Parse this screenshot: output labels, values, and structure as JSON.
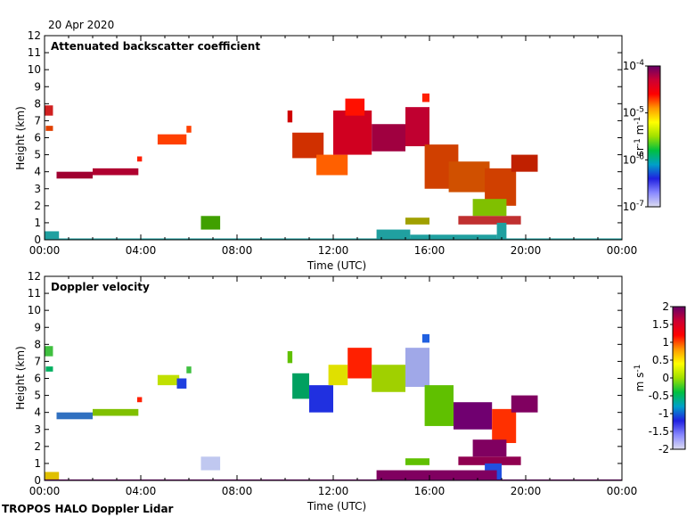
{
  "date": "20 Apr 2020",
  "footer": "TROPOS HALO Doppler Lidar",
  "x_tick_labels": [
    "00:00",
    "04:00",
    "08:00",
    "12:00",
    "16:00",
    "20:00",
    "00:00"
  ],
  "y_tick_labels": [
    "0",
    "1",
    "2",
    "3",
    "4",
    "5",
    "6",
    "7",
    "8",
    "9",
    "10",
    "11",
    "12"
  ],
  "xlabel": "Time (UTC)",
  "ylabel": "Height (km)",
  "chart_data": [
    {
      "type": "heatmap",
      "title": "Attenuated backscatter coefficient",
      "xlabel": "Time (UTC)",
      "ylabel": "Height (km)",
      "xlim": [
        0,
        24
      ],
      "ylim": [
        0,
        12
      ],
      "colorbar": {
        "label_parts": [
          "sr",
          "-1",
          " m",
          "-1"
        ],
        "scale": "log",
        "range": [
          1e-07,
          0.0001
        ],
        "ticks": [
          {
            "base": "10",
            "exp": "-7",
            "v": 0
          },
          {
            "base": "10",
            "exp": "-6",
            "v": 1
          },
          {
            "base": "10",
            "exp": "-5",
            "v": 2
          },
          {
            "base": "10",
            "exp": "-4",
            "v": 3
          }
        ],
        "colormap": [
          "#dcdcf0",
          "#8888ff",
          "#2020e0",
          "#00a0c8",
          "#00c040",
          "#a0e000",
          "#ffff00",
          "#ff9900",
          "#ff0000",
          "#cc0033",
          "#660066"
        ]
      },
      "features": [
        {
          "t0": 0.0,
          "t1": 0.35,
          "h0": 7.3,
          "h1": 7.9,
          "c": "#d02020"
        },
        {
          "t0": 0.05,
          "t1": 0.35,
          "h0": 6.4,
          "h1": 6.7,
          "c": "#e04000"
        },
        {
          "t0": 0.5,
          "t1": 2.0,
          "h0": 3.6,
          "h1": 4.0,
          "c": "#a00030"
        },
        {
          "t0": 2.0,
          "t1": 3.9,
          "h0": 3.8,
          "h1": 4.2,
          "c": "#b00030"
        },
        {
          "t0": 3.85,
          "t1": 4.05,
          "h0": 4.6,
          "h1": 4.9,
          "c": "#ff2000"
        },
        {
          "t0": 4.7,
          "t1": 5.9,
          "h0": 5.6,
          "h1": 6.2,
          "c": "#ff4000"
        },
        {
          "t0": 5.9,
          "t1": 6.1,
          "h0": 6.3,
          "h1": 6.7,
          "c": "#ff4000"
        },
        {
          "t0": 6.5,
          "t1": 7.3,
          "h0": 0.6,
          "h1": 1.4,
          "c": "#40a000"
        },
        {
          "t0": 10.1,
          "t1": 10.3,
          "h0": 6.9,
          "h1": 7.6,
          "c": "#d00000"
        },
        {
          "t0": 10.3,
          "t1": 11.6,
          "h0": 4.8,
          "h1": 6.3,
          "c": "#d03000"
        },
        {
          "t0": 11.3,
          "t1": 12.6,
          "h0": 3.8,
          "h1": 5.0,
          "c": "#ff6000"
        },
        {
          "t0": 12.0,
          "t1": 13.6,
          "h0": 5.0,
          "h1": 7.6,
          "c": "#d00020"
        },
        {
          "t0": 12.5,
          "t1": 13.3,
          "h0": 7.3,
          "h1": 8.3,
          "c": "#ff1000"
        },
        {
          "t0": 13.6,
          "t1": 15.0,
          "h0": 5.2,
          "h1": 6.8,
          "c": "#a00040"
        },
        {
          "t0": 15.0,
          "t1": 16.0,
          "h0": 5.5,
          "h1": 7.8,
          "c": "#c00030"
        },
        {
          "t0": 15.7,
          "t1": 16.0,
          "h0": 8.1,
          "h1": 8.6,
          "c": "#ff2000"
        },
        {
          "t0": 15.8,
          "t1": 17.2,
          "h0": 3.0,
          "h1": 5.6,
          "c": "#d04000"
        },
        {
          "t0": 16.8,
          "t1": 18.5,
          "h0": 2.8,
          "h1": 4.6,
          "c": "#d05000"
        },
        {
          "t0": 18.3,
          "t1": 19.6,
          "h0": 2.0,
          "h1": 4.2,
          "c": "#d04000"
        },
        {
          "t0": 19.4,
          "t1": 20.5,
          "h0": 4.0,
          "h1": 5.0,
          "c": "#c02000"
        },
        {
          "t0": 17.8,
          "t1": 19.2,
          "h0": 1.4,
          "h1": 2.4,
          "c": "#80c000"
        },
        {
          "t0": 17.2,
          "t1": 19.8,
          "h0": 0.9,
          "h1": 1.4,
          "c": "#c03030"
        },
        {
          "t0": 15.0,
          "t1": 16.0,
          "h0": 0.9,
          "h1": 1.3,
          "c": "#a0a000"
        },
        {
          "t0": 0.0,
          "t1": 0.6,
          "h0": 0.0,
          "h1": 0.5,
          "c": "#20a0a0"
        },
        {
          "t0": 13.8,
          "t1": 15.2,
          "h0": 0.0,
          "h1": 0.6,
          "c": "#20a0a0"
        },
        {
          "t0": 15.2,
          "t1": 18.8,
          "h0": 0.0,
          "h1": 0.3,
          "c": "#20a0a0"
        },
        {
          "t0": 18.8,
          "t1": 19.2,
          "h0": 0.0,
          "h1": 1.0,
          "c": "#20a0a0"
        },
        {
          "t0": 0.0,
          "t1": 24.0,
          "h0": 0.0,
          "h1": 0.08,
          "c": "#20a0a0"
        }
      ]
    },
    {
      "type": "heatmap",
      "title": "Doppler velocity",
      "xlabel": "Time (UTC)",
      "ylabel": "Height (km)",
      "xlim": [
        0,
        24
      ],
      "ylim": [
        0,
        12
      ],
      "colorbar": {
        "label_parts": [
          "m s",
          "-1"
        ],
        "scale": "linear",
        "range": [
          -2,
          2
        ],
        "ticks": [
          {
            "base": "-2",
            "exp": "",
            "v": -2
          },
          {
            "base": "-1.5",
            "exp": "",
            "v": -1.5
          },
          {
            "base": "-1",
            "exp": "",
            "v": -1
          },
          {
            "base": "-0.5",
            "exp": "",
            "v": -0.5
          },
          {
            "base": "0",
            "exp": "",
            "v": 0
          },
          {
            "base": "0.5",
            "exp": "",
            "v": 0.5
          },
          {
            "base": "1",
            "exp": "",
            "v": 1
          },
          {
            "base": "1.5",
            "exp": "",
            "v": 1.5
          },
          {
            "base": "2",
            "exp": "",
            "v": 2
          }
        ],
        "colormap": [
          "#dcdcf0",
          "#8888ff",
          "#2020e0",
          "#00a0c8",
          "#00c040",
          "#a0e000",
          "#ffff00",
          "#ff9900",
          "#ff0000",
          "#cc0033",
          "#660066"
        ]
      },
      "features": [
        {
          "t0": 0.0,
          "t1": 0.35,
          "h0": 7.3,
          "h1": 7.9,
          "c": "#40c040"
        },
        {
          "t0": 0.05,
          "t1": 0.35,
          "h0": 6.4,
          "h1": 6.7,
          "c": "#00b060"
        },
        {
          "t0": 0.5,
          "t1": 2.0,
          "h0": 3.6,
          "h1": 4.0,
          "c": "#3070c0"
        },
        {
          "t0": 2.0,
          "t1": 3.9,
          "h0": 3.8,
          "h1": 4.2,
          "c": "#80c000"
        },
        {
          "t0": 3.85,
          "t1": 4.05,
          "h0": 4.6,
          "h1": 4.9,
          "c": "#ff2000"
        },
        {
          "t0": 4.7,
          "t1": 5.6,
          "h0": 5.6,
          "h1": 6.2,
          "c": "#c0e000"
        },
        {
          "t0": 5.5,
          "t1": 5.9,
          "h0": 5.4,
          "h1": 6.0,
          "c": "#2040e0"
        },
        {
          "t0": 5.9,
          "t1": 6.1,
          "h0": 6.3,
          "h1": 6.7,
          "c": "#40c040"
        },
        {
          "t0": 6.5,
          "t1": 7.3,
          "h0": 0.6,
          "h1": 1.4,
          "c": "#c0c8f0"
        },
        {
          "t0": 10.1,
          "t1": 10.3,
          "h0": 6.9,
          "h1": 7.6,
          "c": "#60c000"
        },
        {
          "t0": 10.3,
          "t1": 11.0,
          "h0": 4.8,
          "h1": 6.3,
          "c": "#00a060"
        },
        {
          "t0": 11.0,
          "t1": 12.0,
          "h0": 4.0,
          "h1": 5.6,
          "c": "#2030e0"
        },
        {
          "t0": 11.8,
          "t1": 12.6,
          "h0": 5.6,
          "h1": 6.8,
          "c": "#e0e000"
        },
        {
          "t0": 12.6,
          "t1": 13.6,
          "h0": 6.0,
          "h1": 7.8,
          "c": "#ff2000"
        },
        {
          "t0": 13.6,
          "t1": 15.0,
          "h0": 5.2,
          "h1": 6.8,
          "c": "#a0d000"
        },
        {
          "t0": 15.0,
          "t1": 16.0,
          "h0": 5.5,
          "h1": 7.8,
          "c": "#a0a8e8"
        },
        {
          "t0": 15.7,
          "t1": 16.0,
          "h0": 8.1,
          "h1": 8.6,
          "c": "#2060e0"
        },
        {
          "t0": 15.8,
          "t1": 17.0,
          "h0": 3.2,
          "h1": 5.6,
          "c": "#60c000"
        },
        {
          "t0": 17.0,
          "t1": 18.6,
          "h0": 3.0,
          "h1": 4.6,
          "c": "#700070"
        },
        {
          "t0": 18.6,
          "t1": 19.6,
          "h0": 2.2,
          "h1": 4.2,
          "c": "#ff3000"
        },
        {
          "t0": 19.4,
          "t1": 20.5,
          "h0": 4.0,
          "h1": 5.0,
          "c": "#800060"
        },
        {
          "t0": 17.8,
          "t1": 19.2,
          "h0": 1.4,
          "h1": 2.4,
          "c": "#800060"
        },
        {
          "t0": 17.2,
          "t1": 19.8,
          "h0": 0.9,
          "h1": 1.4,
          "c": "#900050"
        },
        {
          "t0": 15.0,
          "t1": 16.0,
          "h0": 0.9,
          "h1": 1.3,
          "c": "#60c000"
        },
        {
          "t0": 18.3,
          "t1": 19.0,
          "h0": 0.0,
          "h1": 1.0,
          "c": "#2050e0"
        },
        {
          "t0": 0.0,
          "t1": 0.6,
          "h0": 0.0,
          "h1": 0.5,
          "c": "#e0c000"
        },
        {
          "t0": 13.8,
          "t1": 18.8,
          "h0": 0.0,
          "h1": 0.6,
          "c": "#800060"
        },
        {
          "t0": 0.0,
          "t1": 24.0,
          "h0": 0.0,
          "h1": 0.06,
          "c": "#700070"
        }
      ]
    }
  ]
}
